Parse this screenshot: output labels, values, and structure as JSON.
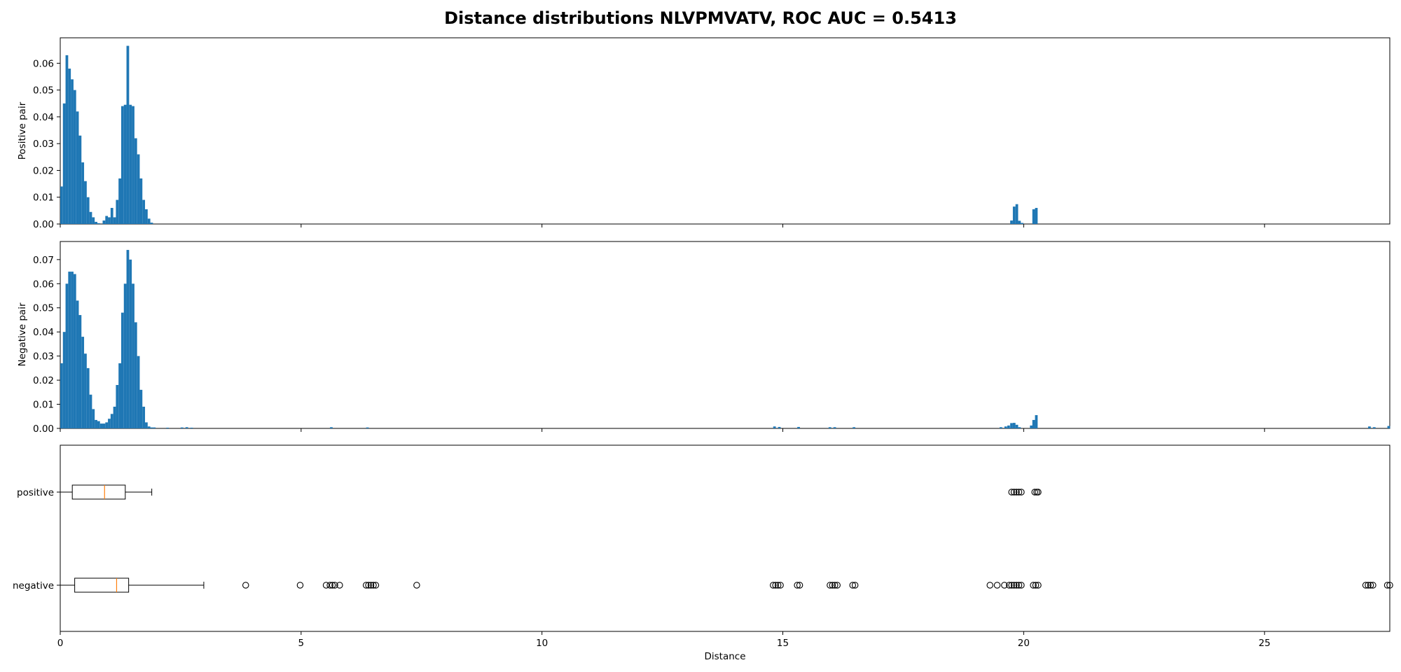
{
  "figure": {
    "title": "Distance distributions NLVPMVATV, ROC AUC = 0.5413"
  },
  "chart_data": [
    {
      "type": "bar",
      "panel": "positive-histogram",
      "ylabel": "Positive pair",
      "xlim": [
        0,
        27.6
      ],
      "ylim": [
        0,
        0.0695
      ],
      "yticks": [
        "0.00",
        "0.01",
        "0.02",
        "0.03",
        "0.04",
        "0.05",
        "0.06"
      ],
      "bin_width": 0.055,
      "color": "#1f77b4",
      "bins": [
        [
          0.0,
          0.014
        ],
        [
          0.055,
          0.045
        ],
        [
          0.11,
          0.063
        ],
        [
          0.165,
          0.058
        ],
        [
          0.22,
          0.054
        ],
        [
          0.275,
          0.05
        ],
        [
          0.33,
          0.042
        ],
        [
          0.385,
          0.033
        ],
        [
          0.44,
          0.023
        ],
        [
          0.495,
          0.016
        ],
        [
          0.55,
          0.01
        ],
        [
          0.605,
          0.0045
        ],
        [
          0.66,
          0.0025
        ],
        [
          0.715,
          0.0008
        ],
        [
          0.77,
          0.0003
        ],
        [
          0.88,
          0.0013
        ],
        [
          0.935,
          0.003
        ],
        [
          0.99,
          0.0025
        ],
        [
          1.045,
          0.006
        ],
        [
          1.1,
          0.0025
        ],
        [
          1.155,
          0.009
        ],
        [
          1.21,
          0.017
        ],
        [
          1.265,
          0.044
        ],
        [
          1.32,
          0.0445
        ],
        [
          1.375,
          0.0665
        ],
        [
          1.43,
          0.0445
        ],
        [
          1.485,
          0.044
        ],
        [
          1.54,
          0.032
        ],
        [
          1.595,
          0.026
        ],
        [
          1.65,
          0.017
        ],
        [
          1.705,
          0.009
        ],
        [
          1.76,
          0.0055
        ],
        [
          1.815,
          0.002
        ],
        [
          1.87,
          0.0005
        ],
        [
          19.72,
          0.0013
        ],
        [
          19.775,
          0.0065
        ],
        [
          19.83,
          0.0074
        ],
        [
          19.885,
          0.0012
        ],
        [
          19.94,
          0.0004
        ],
        [
          20.18,
          0.0055
        ],
        [
          20.235,
          0.006
        ]
      ]
    },
    {
      "type": "bar",
      "panel": "negative-histogram",
      "ylabel": "Negative pair",
      "xlim": [
        0,
        27.6
      ],
      "ylim": [
        0,
        0.0775
      ],
      "yticks": [
        "0.00",
        "0.01",
        "0.02",
        "0.03",
        "0.04",
        "0.05",
        "0.06",
        "0.07"
      ],
      "bin_width": 0.055,
      "color": "#1f77b4",
      "bins": [
        [
          0.0,
          0.027
        ],
        [
          0.055,
          0.04
        ],
        [
          0.11,
          0.06
        ],
        [
          0.165,
          0.065
        ],
        [
          0.22,
          0.065
        ],
        [
          0.275,
          0.064
        ],
        [
          0.33,
          0.053
        ],
        [
          0.385,
          0.047
        ],
        [
          0.44,
          0.038
        ],
        [
          0.495,
          0.031
        ],
        [
          0.55,
          0.025
        ],
        [
          0.605,
          0.014
        ],
        [
          0.66,
          0.008
        ],
        [
          0.715,
          0.0035
        ],
        [
          0.77,
          0.003
        ],
        [
          0.825,
          0.002
        ],
        [
          0.88,
          0.002
        ],
        [
          0.935,
          0.0025
        ],
        [
          0.99,
          0.004
        ],
        [
          1.045,
          0.006
        ],
        [
          1.1,
          0.009
        ],
        [
          1.155,
          0.018
        ],
        [
          1.21,
          0.027
        ],
        [
          1.265,
          0.048
        ],
        [
          1.32,
          0.06
        ],
        [
          1.375,
          0.074
        ],
        [
          1.43,
          0.07
        ],
        [
          1.485,
          0.06
        ],
        [
          1.54,
          0.044
        ],
        [
          1.595,
          0.03
        ],
        [
          1.65,
          0.016
        ],
        [
          1.705,
          0.009
        ],
        [
          1.76,
          0.0025
        ],
        [
          1.815,
          0.0008
        ],
        [
          1.87,
          0.0004
        ],
        [
          1.925,
          0.0004
        ],
        [
          2.2,
          0.0003
        ],
        [
          2.5,
          0.0004
        ],
        [
          2.6,
          0.0005
        ],
        [
          2.7,
          0.0003
        ],
        [
          5.6,
          0.0005
        ],
        [
          6.35,
          0.0004
        ],
        [
          14.8,
          0.0008
        ],
        [
          14.9,
          0.0006
        ],
        [
          15.3,
          0.0006
        ],
        [
          15.95,
          0.0005
        ],
        [
          16.05,
          0.0005
        ],
        [
          16.45,
          0.0005
        ],
        [
          19.5,
          0.0005
        ],
        [
          19.6,
          0.0008
        ],
        [
          19.66,
          0.0012
        ],
        [
          19.72,
          0.0022
        ],
        [
          19.775,
          0.0023
        ],
        [
          19.83,
          0.0015
        ],
        [
          19.885,
          0.0005
        ],
        [
          20.13,
          0.0012
        ],
        [
          20.18,
          0.0035
        ],
        [
          20.235,
          0.0055
        ],
        [
          27.15,
          0.0008
        ],
        [
          27.25,
          0.0005
        ],
        [
          27.55,
          0.001
        ]
      ]
    },
    {
      "type": "boxplot",
      "panel": "boxplot",
      "xlabel": "Distance",
      "xlim": [
        0,
        27.6
      ],
      "xticks": [
        0,
        5,
        10,
        15,
        20,
        25
      ],
      "categories": [
        "positive",
        "negative"
      ],
      "series": [
        {
          "name": "positive",
          "whisker_low": 0.0,
          "q1": 0.25,
          "median": 0.92,
          "q3": 1.35,
          "whisker_high": 1.9,
          "fliers": [
            19.75,
            19.8,
            19.85,
            19.9,
            19.95,
            20.23,
            20.27,
            20.3
          ]
        },
        {
          "name": "negative",
          "whisker_low": 0.0,
          "q1": 0.3,
          "median": 1.17,
          "q3": 1.42,
          "whisker_high": 2.98,
          "fliers": [
            3.85,
            4.98,
            5.52,
            5.6,
            5.65,
            5.7,
            5.8,
            6.35,
            6.4,
            6.45,
            6.5,
            6.55,
            7.4,
            14.8,
            14.85,
            14.9,
            14.95,
            15.3,
            15.35,
            15.98,
            16.03,
            16.08,
            16.13,
            16.45,
            16.5,
            19.3,
            19.45,
            19.6,
            19.7,
            19.75,
            19.8,
            19.85,
            19.9,
            19.95,
            20.2,
            20.25,
            20.3,
            27.1,
            27.15,
            27.2,
            27.25,
            27.55,
            27.6
          ]
        }
      ]
    }
  ]
}
